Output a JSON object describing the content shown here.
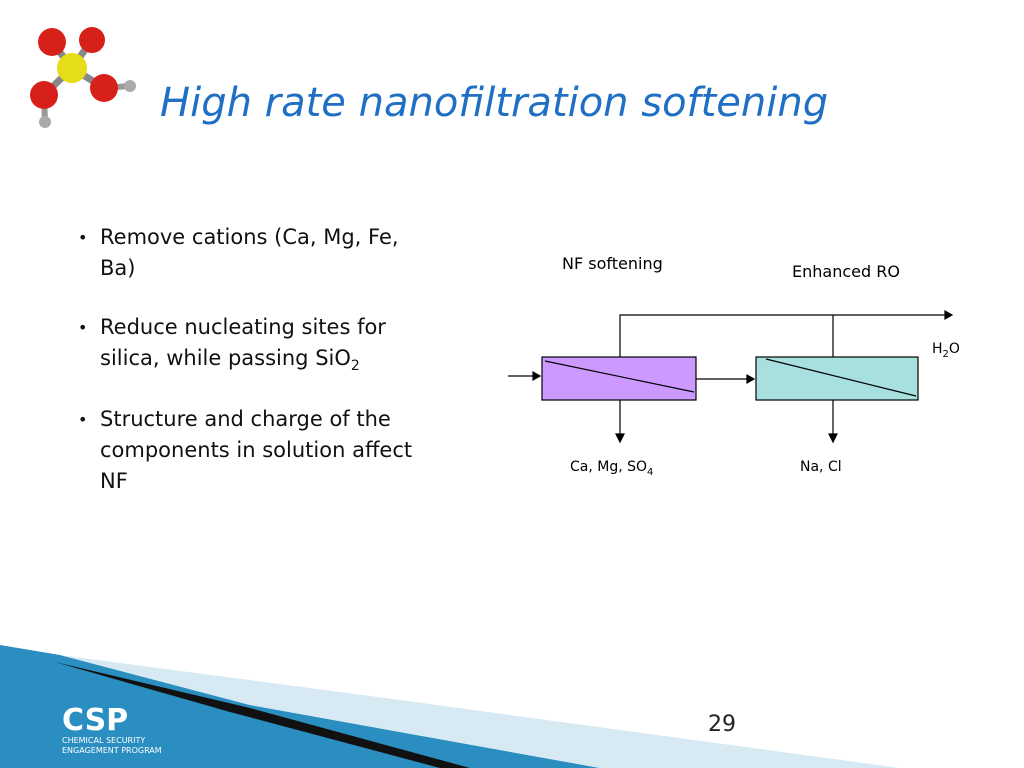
{
  "header": {
    "title": "High rate nanofiltration softening"
  },
  "bullets": [
    {
      "lines": [
        "Remove cations (Ca, Mg, Fe,",
        "Ba)"
      ]
    },
    {
      "lines": [
        "Reduce nucleating sites for",
        "silica, while passing SiO"
      ],
      "sub": "2"
    },
    {
      "lines": [
        "Structure and charge of the",
        "components in solution affect",
        "NF"
      ]
    }
  ],
  "diagram": {
    "nf_label": "NF softening",
    "ro_label": "Enhanced RO",
    "water": [
      "H",
      "2",
      "O"
    ],
    "nf_reject": [
      "Ca, Mg, SO",
      "4"
    ],
    "ro_reject": "Na, Cl"
  },
  "footer": {
    "page_number": "29",
    "logo": "CSP",
    "logo_line1": "CHEMICAL SECURITY",
    "logo_line2": "ENGAGEMENT PROGRAM"
  }
}
